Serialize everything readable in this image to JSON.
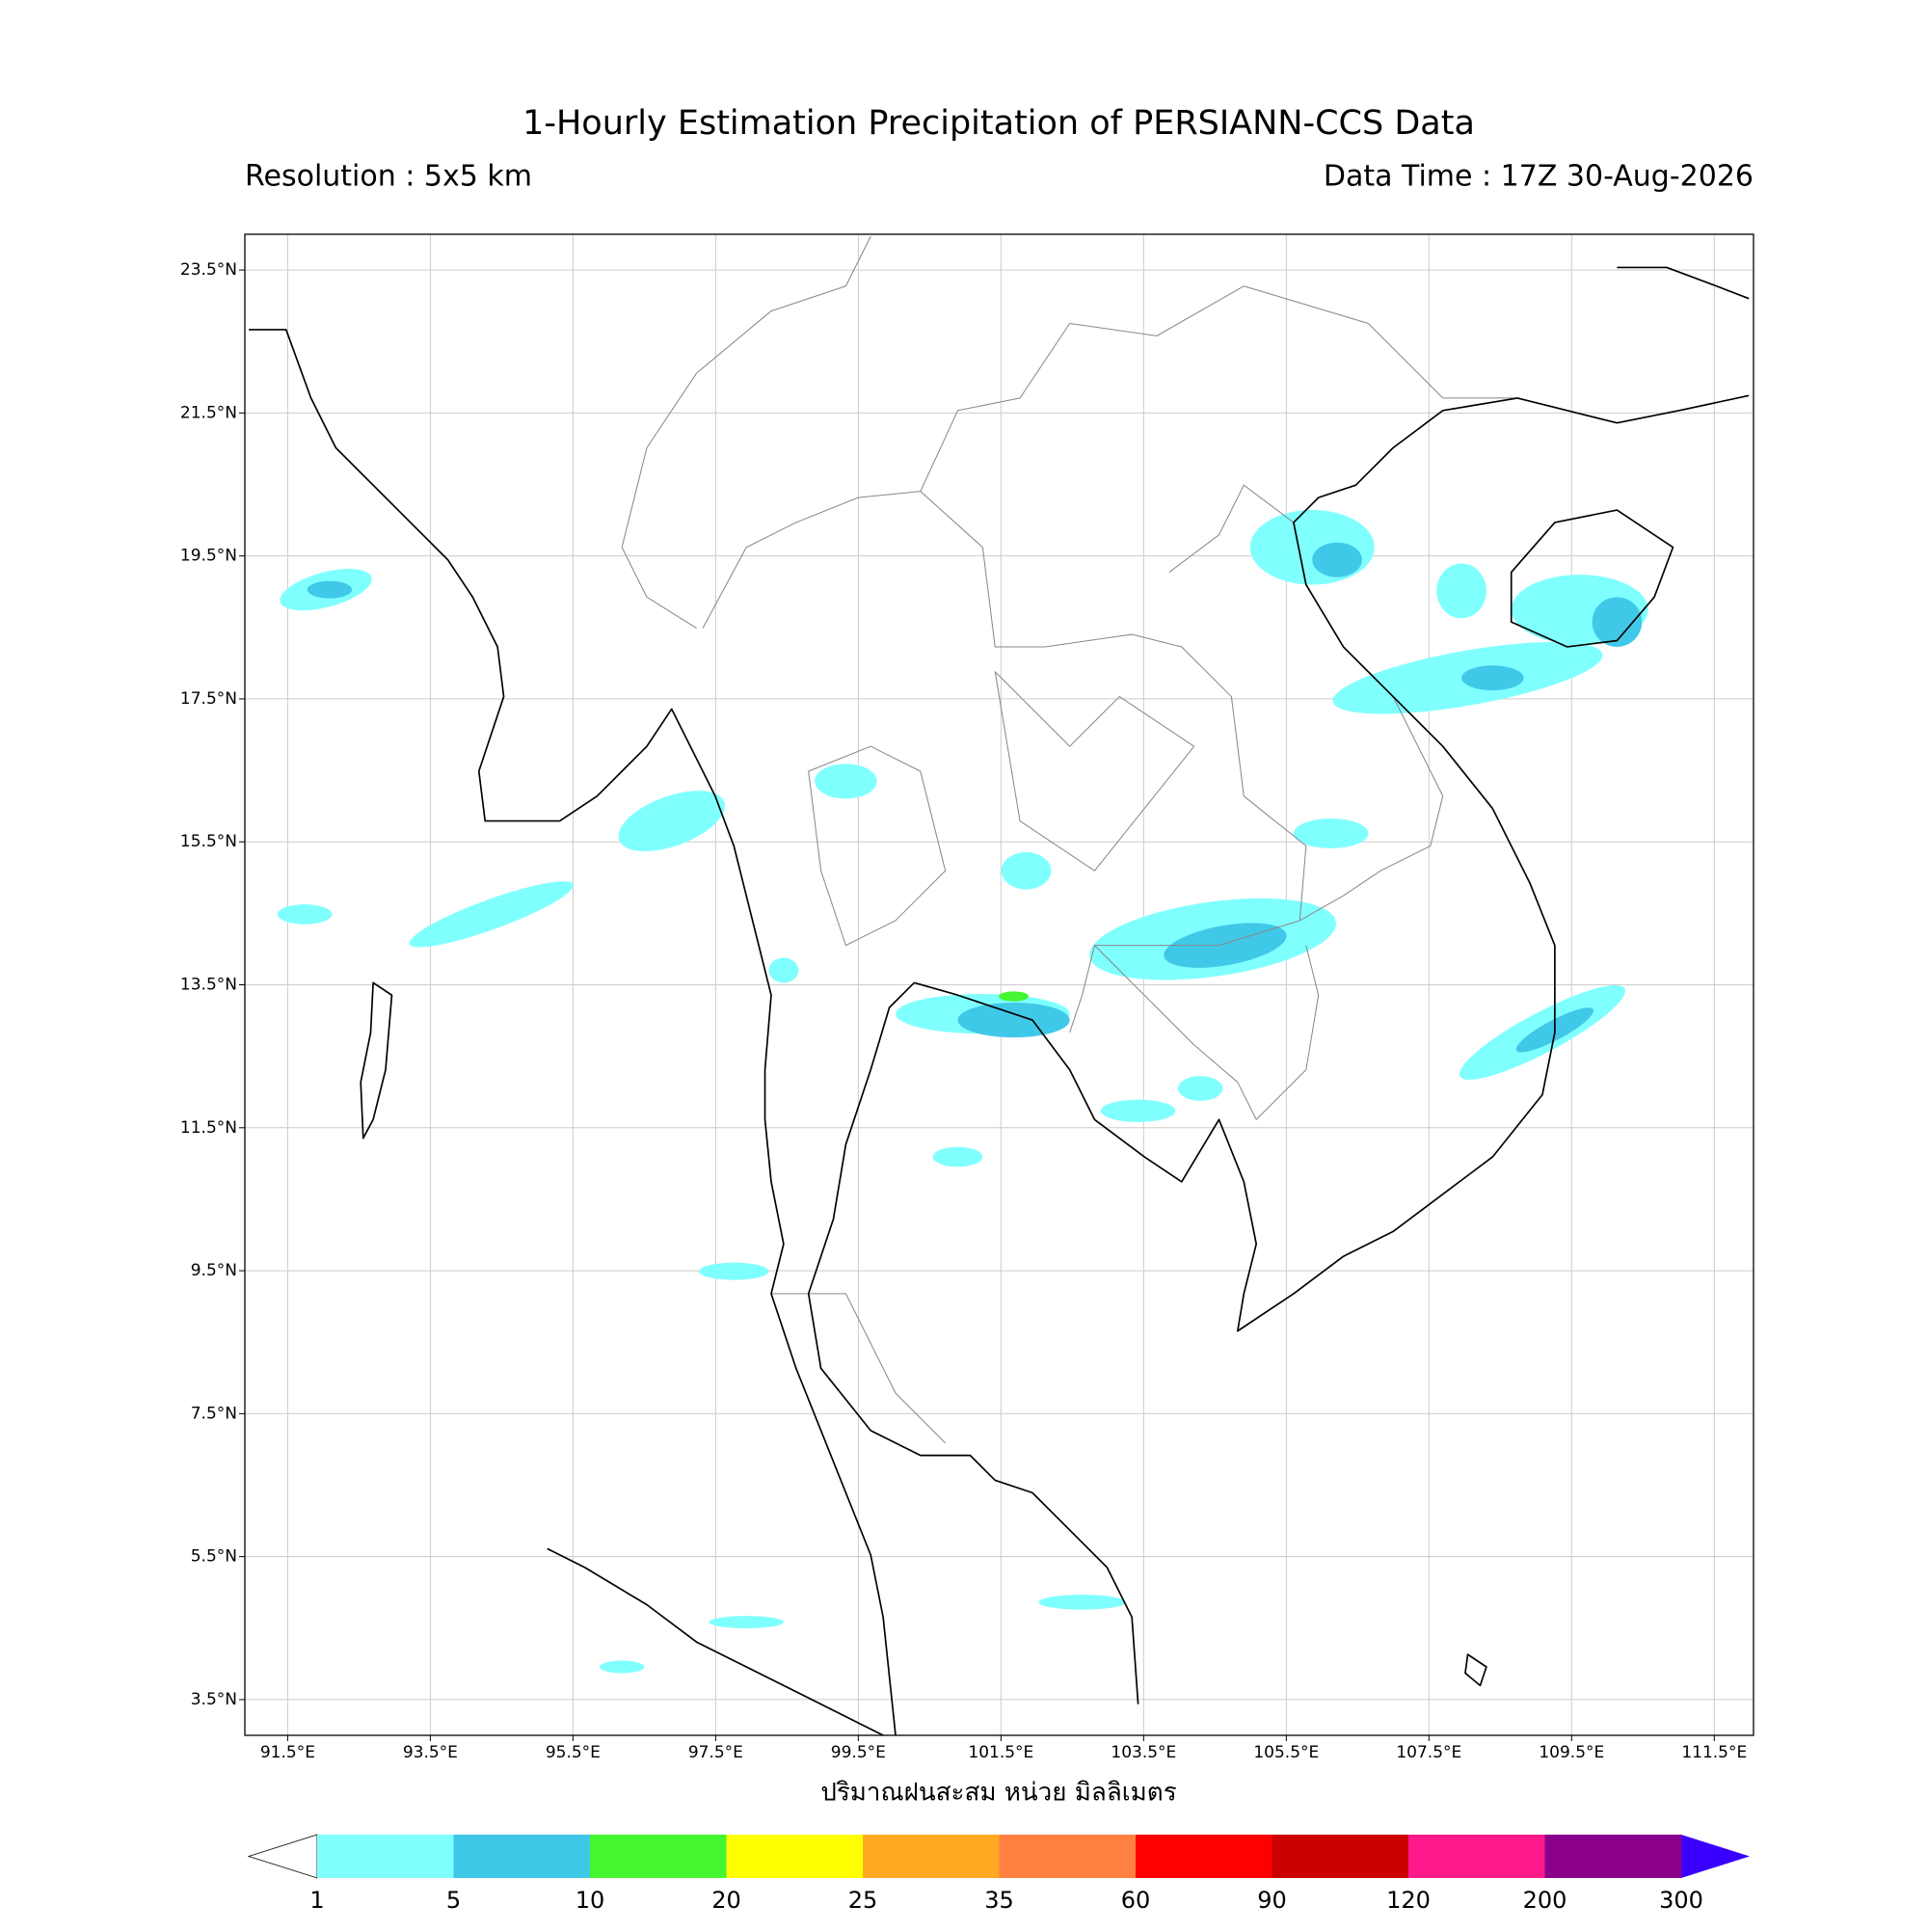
{
  "chart_data": {
    "type": "map",
    "title": "1-Hourly Estimation Precipitation of PERSIANN-CCS Data",
    "subtitle_left": "Resolution : 5x5 km",
    "subtitle_right": "Data Time : 17Z 30-Aug-2026",
    "xlabel": "ปริมาณฝนสะสม หน่วย มิลลิเมตร",
    "xlim": [
      90.9,
      112.05
    ],
    "ylim": [
      3.0,
      24.0
    ],
    "grid": true,
    "xticks": [
      {
        "value": 91.5,
        "label": "91.5°E"
      },
      {
        "value": 93.5,
        "label": "93.5°E"
      },
      {
        "value": 95.5,
        "label": "95.5°E"
      },
      {
        "value": 97.5,
        "label": "97.5°E"
      },
      {
        "value": 99.5,
        "label": "99.5°E"
      },
      {
        "value": 101.5,
        "label": "101.5°E"
      },
      {
        "value": 103.5,
        "label": "103.5°E"
      },
      {
        "value": 105.5,
        "label": "105.5°E"
      },
      {
        "value": 107.5,
        "label": "107.5°E"
      },
      {
        "value": 109.5,
        "label": "109.5°E"
      },
      {
        "value": 111.5,
        "label": "111.5°E"
      }
    ],
    "yticks": [
      {
        "value": 3.5,
        "label": "3.5°N"
      },
      {
        "value": 5.5,
        "label": "5.5°N"
      },
      {
        "value": 7.5,
        "label": "7.5°N"
      },
      {
        "value": 9.5,
        "label": "9.5°N"
      },
      {
        "value": 11.5,
        "label": "11.5°N"
      },
      {
        "value": 13.5,
        "label": "13.5°N"
      },
      {
        "value": 15.5,
        "label": "15.5°N"
      },
      {
        "value": 17.5,
        "label": "17.5°N"
      },
      {
        "value": 19.5,
        "label": "19.5°N"
      },
      {
        "value": 21.5,
        "label": "21.5°N"
      },
      {
        "value": 23.5,
        "label": "23.5°N"
      }
    ],
    "colorbar": {
      "levels": [
        1,
        5,
        10,
        20,
        25,
        35,
        60,
        90,
        120,
        200,
        300
      ],
      "colors": [
        "#80ffff",
        "#40c8e8",
        "#44f530",
        "#ffff00",
        "#ffaa22",
        "#ff8040",
        "#ff0000",
        "#cc0000",
        "#ff1a8c",
        "#8b008b"
      ],
      "extend_min_color": "#ffffff",
      "extend_max_color": "#3a00ff"
    }
  }
}
